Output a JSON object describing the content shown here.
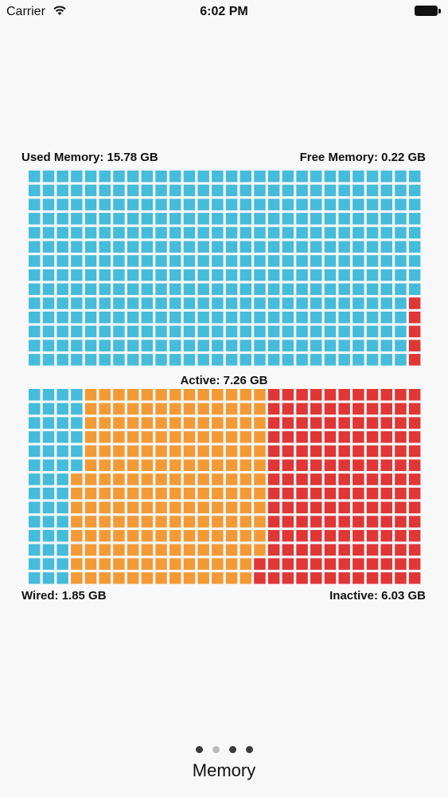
{
  "status_bar": {
    "carrier": "Carrier",
    "time": "6:02 PM"
  },
  "memory": {
    "used_label": "Used Memory: 15.78 GB",
    "free_label": "Free Memory: 0.22 GB",
    "active_label": "Active: 7.26 GB",
    "wired_label": "Wired: 1.85 GB",
    "inactive_label": "Inactive: 6.03 GB"
  },
  "colors": {
    "used": "#45bcd9",
    "free": "#e03636",
    "wired": "#45bcd9",
    "active": "#f39a36",
    "inactive": "#e03636"
  },
  "page_control": {
    "page_count": 4,
    "current_page_index": 1,
    "title": "Memory"
  }
}
